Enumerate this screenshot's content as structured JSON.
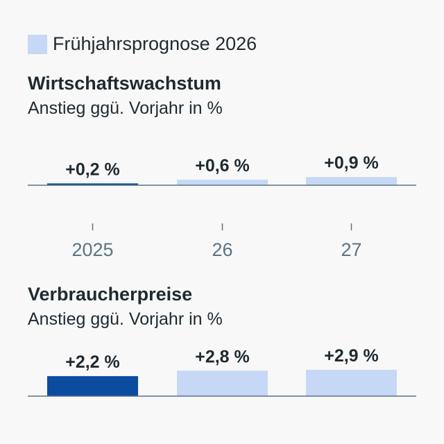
{
  "legend": {
    "label": "Frühjahrsprognose 2026",
    "color": "#c6d8f5"
  },
  "colors": {
    "actual": "#0b4ca0",
    "forecast": "#c6d8f5",
    "axis": "#5b7383"
  },
  "x_ticks": [
    "2025",
    "26",
    "27"
  ],
  "chart_data": [
    {
      "type": "bar",
      "title": "Wirtschaftswachstum",
      "subtitle": "Anstieg ggü. Vorjahr in %",
      "categories": [
        "2025",
        "26",
        "27"
      ],
      "values": [
        0.2,
        0.6,
        0.9
      ],
      "labels": [
        "+0,2 %",
        "+0,6 %",
        "+0,9 %"
      ],
      "ylim": [
        0,
        3
      ]
    },
    {
      "type": "bar",
      "title": "Verbraucherpreise",
      "subtitle": "Anstieg ggü. Vorjahr in %",
      "categories": [
        "2025",
        "26",
        "27"
      ],
      "values": [
        2.2,
        2.8,
        2.9
      ],
      "labels": [
        "+2,2 %",
        "+2,8 %",
        "+2,9 %"
      ],
      "ylim": [
        0,
        3
      ]
    }
  ]
}
